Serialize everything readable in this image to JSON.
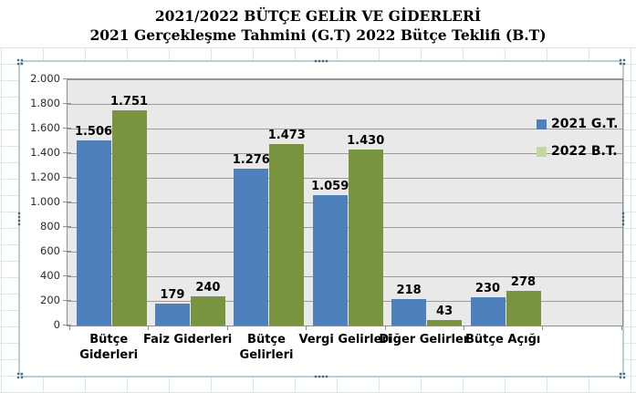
{
  "title": {
    "line1": "2021/2022 BÜTÇE GELİR VE GİDERLERİ",
    "line2": "2021 Gerçekleşme Tahmini (G.T) 2022 Bütçe Teklifi (B.T)"
  },
  "chart_data": {
    "type": "bar",
    "title": "2021/2022 BÜTÇE GELİR VE GİDERLERİ — 2021 Gerçekleşme Tahmini (G.T) 2022 Bütçe Teklifi (B.T)",
    "categories": [
      "Bütçe Giderleri",
      "Faiz Giderleri",
      "Bütçe Gelirleri",
      "Vergi Gelirleri",
      "Diğer Gelirler",
      "Bütçe Açığı"
    ],
    "categories_lines": [
      [
        "Bütçe",
        "Giderleri"
      ],
      [
        "Faiz Giderleri"
      ],
      [
        "Bütçe",
        "Gelirleri"
      ],
      [
        "Vergi Gelirleri"
      ],
      [
        "Diğer Gelirler"
      ],
      [
        "Bütçe Açığı"
      ]
    ],
    "series": [
      {
        "name": "2021 G.T.",
        "color": "#4e80bc",
        "legend_color": "#4e80bc",
        "values": [
          1506,
          179,
          1276,
          1059,
          218,
          230
        ],
        "labels": [
          "1.506",
          "179",
          "1.276",
          "1.059",
          "218",
          "230"
        ]
      },
      {
        "name": "2022 B.T.",
        "color": "#78943e",
        "legend_color": "#c5d79e",
        "values": [
          1751,
          240,
          1473,
          1430,
          43,
          278
        ],
        "labels": [
          "1.751",
          "240",
          "1.473",
          "1.430",
          "43",
          "278"
        ]
      }
    ],
    "ylim": [
      0,
      2000
    ],
    "ytick_step": 200,
    "ytick_labels": [
      "0",
      "200",
      "400",
      "600",
      "800",
      "1.000",
      "1.200",
      "1.400",
      "1.600",
      "1.800",
      "2.000"
    ],
    "grid": true,
    "legend_position": "inside-right",
    "plot_bg": "#e9e9e9",
    "gridline_color": "#9b9b9b"
  }
}
